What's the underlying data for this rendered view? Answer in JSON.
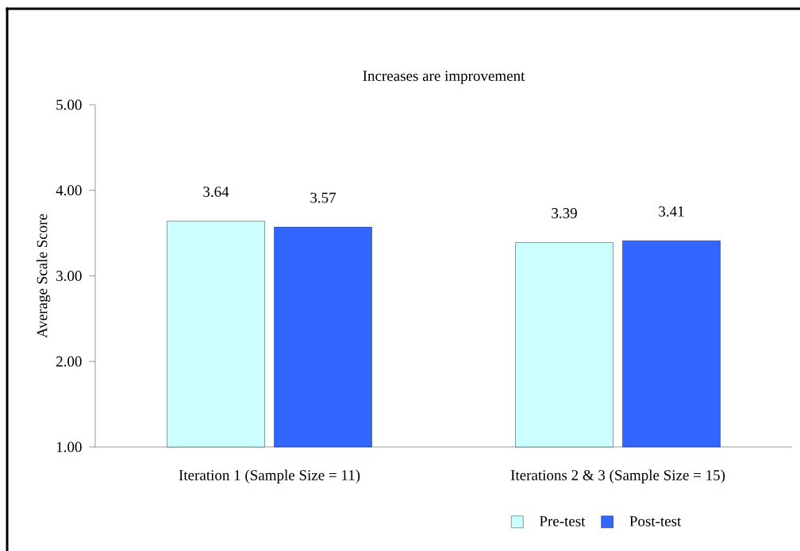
{
  "chart_data": {
    "type": "bar",
    "title": "Increases are improvement",
    "ylabel": "Average Scale Score",
    "categories": [
      "Iteration 1 (Sample Size = 11)",
      "Iterations 2 & 3 (Sample Size = 15)"
    ],
    "series": [
      {
        "name": "Pre-test",
        "color": "#ccffff",
        "values": [
          3.64,
          3.39
        ]
      },
      {
        "name": "Post-test",
        "color": "#3366ff",
        "values": [
          3.57,
          3.41
        ]
      }
    ],
    "ylim": [
      1,
      5
    ],
    "yticks": [
      {
        "value": 1,
        "label": "1.00"
      },
      {
        "value": 2,
        "label": "2.00"
      },
      {
        "value": 3,
        "label": "3.00"
      },
      {
        "value": 4,
        "label": "4.00"
      },
      {
        "value": 5,
        "label": "5.00"
      }
    ],
    "data_labels": true,
    "legend": "bottom",
    "grid": false
  }
}
